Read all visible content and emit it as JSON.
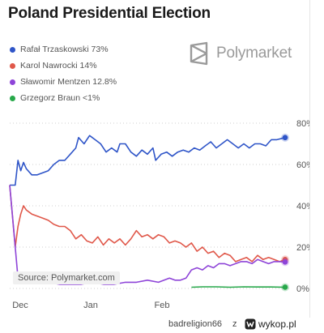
{
  "title": "Poland Presidential Election",
  "brand": {
    "name": "Polymarket",
    "icon": "polymarket-logo-icon"
  },
  "source": "Source: Polymarket.com",
  "footer": {
    "user": "badreligion66",
    "sep": "z",
    "site": "wykop.pl",
    "icon": "wykop-logo-icon"
  },
  "chart_data": {
    "type": "line",
    "title": "Poland Presidential Election",
    "x": [
      "Dec",
      "Jan",
      "Feb"
    ],
    "x_ticks": [
      "Dec",
      "Jan",
      "Feb"
    ],
    "y_ticks": [
      "0%",
      "20%",
      "40%",
      "60%",
      "80%"
    ],
    "ylim": [
      0,
      80
    ],
    "grid": "horizontal dotted",
    "legend_position": "top-left",
    "series": [
      {
        "name": "Rafał Trzaskowski 73%",
        "color": "#2f55c8",
        "points": [
          [
            0,
            50
          ],
          [
            2,
            50
          ],
          [
            3,
            62
          ],
          [
            4,
            57
          ],
          [
            5,
            61
          ],
          [
            6,
            58
          ],
          [
            8,
            55
          ],
          [
            10,
            55
          ],
          [
            12,
            56
          ],
          [
            14,
            57
          ],
          [
            16,
            60
          ],
          [
            18,
            62
          ],
          [
            20,
            62
          ],
          [
            22,
            65
          ],
          [
            24,
            68
          ],
          [
            25,
            73
          ],
          [
            27,
            70
          ],
          [
            29,
            74
          ],
          [
            31,
            72
          ],
          [
            33,
            70
          ],
          [
            35,
            66
          ],
          [
            37,
            68
          ],
          [
            39,
            66
          ],
          [
            40,
            70
          ],
          [
            42,
            70
          ],
          [
            44,
            66
          ],
          [
            46,
            64
          ],
          [
            48,
            67
          ],
          [
            50,
            65
          ],
          [
            52,
            68
          ],
          [
            53,
            62
          ],
          [
            55,
            65
          ],
          [
            57,
            66
          ],
          [
            59,
            64
          ],
          [
            61,
            66
          ],
          [
            63,
            67
          ],
          [
            65,
            66
          ],
          [
            67,
            68
          ],
          [
            69,
            67
          ],
          [
            71,
            69
          ],
          [
            73,
            71
          ],
          [
            75,
            68
          ],
          [
            77,
            70
          ],
          [
            79,
            72
          ],
          [
            81,
            70
          ],
          [
            83,
            68
          ],
          [
            85,
            70
          ],
          [
            87,
            68
          ],
          [
            89,
            70
          ],
          [
            91,
            70
          ],
          [
            93,
            69
          ],
          [
            95,
            72
          ],
          [
            97,
            72
          ],
          [
            100,
            73
          ]
        ]
      },
      {
        "name": "Karol Nawrocki 14%",
        "color": "#e0584a",
        "points": [
          [
            0,
            50
          ],
          [
            2,
            20
          ],
          [
            3,
            30
          ],
          [
            4,
            36
          ],
          [
            5,
            40
          ],
          [
            6,
            38
          ],
          [
            8,
            36
          ],
          [
            10,
            35
          ],
          [
            12,
            34
          ],
          [
            14,
            33
          ],
          [
            16,
            31
          ],
          [
            18,
            30
          ],
          [
            20,
            30
          ],
          [
            22,
            28
          ],
          [
            24,
            24
          ],
          [
            26,
            26
          ],
          [
            28,
            23
          ],
          [
            30,
            22
          ],
          [
            32,
            25
          ],
          [
            34,
            21
          ],
          [
            36,
            24
          ],
          [
            38,
            22
          ],
          [
            40,
            24
          ],
          [
            42,
            21
          ],
          [
            44,
            24
          ],
          [
            46,
            28
          ],
          [
            48,
            25
          ],
          [
            50,
            26
          ],
          [
            52,
            24
          ],
          [
            54,
            26
          ],
          [
            56,
            25
          ],
          [
            58,
            22
          ],
          [
            60,
            23
          ],
          [
            62,
            22
          ],
          [
            64,
            20
          ],
          [
            66,
            22
          ],
          [
            68,
            18
          ],
          [
            70,
            20
          ],
          [
            72,
            17
          ],
          [
            74,
            18
          ],
          [
            76,
            15
          ],
          [
            78,
            17
          ],
          [
            80,
            16
          ],
          [
            82,
            13
          ],
          [
            84,
            14
          ],
          [
            86,
            15
          ],
          [
            88,
            13
          ],
          [
            90,
            16
          ],
          [
            92,
            14
          ],
          [
            94,
            15
          ],
          [
            96,
            14
          ],
          [
            98,
            13
          ],
          [
            100,
            14
          ]
        ]
      },
      {
        "name": "Sławomir Mentzen 12.8%",
        "color": "#8e44d8",
        "points": [
          [
            0,
            50
          ],
          [
            2,
            20
          ],
          [
            3,
            5
          ],
          [
            4,
            3
          ],
          [
            6,
            3
          ],
          [
            10,
            3
          ],
          [
            14,
            3
          ],
          [
            18,
            2
          ],
          [
            22,
            2
          ],
          [
            26,
            2
          ],
          [
            30,
            3
          ],
          [
            34,
            2
          ],
          [
            38,
            2
          ],
          [
            42,
            3
          ],
          [
            46,
            3
          ],
          [
            50,
            4
          ],
          [
            54,
            3
          ],
          [
            58,
            5
          ],
          [
            60,
            4
          ],
          [
            62,
            4
          ],
          [
            64,
            5
          ],
          [
            66,
            9
          ],
          [
            68,
            10
          ],
          [
            70,
            9
          ],
          [
            72,
            11
          ],
          [
            74,
            10
          ],
          [
            76,
            12
          ],
          [
            78,
            12
          ],
          [
            80,
            11
          ],
          [
            82,
            12
          ],
          [
            84,
            13
          ],
          [
            86,
            13
          ],
          [
            88,
            12
          ],
          [
            90,
            14
          ],
          [
            92,
            13
          ],
          [
            94,
            12
          ],
          [
            96,
            13
          ],
          [
            98,
            13
          ],
          [
            100,
            12.8
          ]
        ]
      },
      {
        "name": "Grzegorz Braun <1%",
        "color": "#27a84a",
        "points": [
          [
            66,
            0.6
          ],
          [
            70,
            0.8
          ],
          [
            75,
            0.8
          ],
          [
            80,
            0.6
          ],
          [
            85,
            0.8
          ],
          [
            90,
            0.7
          ],
          [
            95,
            0.7
          ],
          [
            100,
            0.6
          ]
        ]
      }
    ]
  }
}
